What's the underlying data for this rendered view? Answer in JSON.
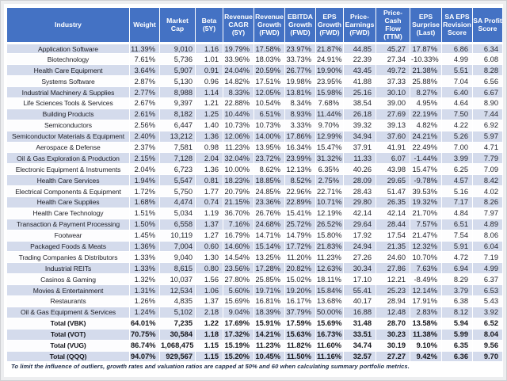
{
  "page": {
    "footnote": "To limit the influence of outliers, growth rates and valuation ratios are capped at 50% and 60 when calculating summary portfolio metrics."
  },
  "colors": {
    "header_bg": "#4472C4",
    "header_text": "#FFFFFF",
    "banded_row_bg": "#D4DBEC",
    "plain_row_bg": "#FDFDFE",
    "body_text": "#1E1F27",
    "footnote_text": "#1C2B47"
  },
  "chart_data": {
    "type": "table",
    "columns": [
      "Industry",
      "Weight",
      "Market Cap",
      "Beta (5Y)",
      "Revenue CAGR (5Y)",
      "Revenue Growth (FWD)",
      "EBITDA Growth (FWD)",
      "EPS Growth (FWD)",
      "Price-Earnings (FWD)",
      "Price-Cash Flow (TTM)",
      "EPS Surprise (Last)",
      "SA EPS Revision Score",
      "SA Profit Score"
    ],
    "rows": [
      [
        "Application Software",
        "11.39%",
        "9,010",
        "1.16",
        "19.79%",
        "17.58%",
        "23.97%",
        "21.87%",
        "44.85",
        "45.27",
        "17.87%",
        "6.86",
        "6.34"
      ],
      [
        "Biotechnology",
        "7.61%",
        "5,736",
        "1.01",
        "33.96%",
        "18.03%",
        "33.73%",
        "24.91%",
        "22.39",
        "27.34",
        "-10.33%",
        "4.99",
        "6.08"
      ],
      [
        "Health Care Equipment",
        "3.64%",
        "5,907",
        "0.91",
        "24.04%",
        "20.59%",
        "26.77%",
        "19.90%",
        "43.45",
        "49.72",
        "21.38%",
        "5.51",
        "8.28"
      ],
      [
        "Systems Software",
        "2.87%",
        "5,130",
        "0.96",
        "14.82%",
        "17.51%",
        "19.98%",
        "23.95%",
        "41.88",
        "37.33",
        "25.88%",
        "7.04",
        "6.56"
      ],
      [
        "Industrial Machinery & Supplies",
        "2.77%",
        "8,988",
        "1.14",
        "8.33%",
        "12.05%",
        "13.81%",
        "15.98%",
        "25.16",
        "30.10",
        "8.27%",
        "6.40",
        "6.67"
      ],
      [
        "Life Sciences Tools & Services",
        "2.67%",
        "9,397",
        "1.21",
        "22.88%",
        "10.54%",
        "8.34%",
        "7.68%",
        "38.54",
        "39.00",
        "4.95%",
        "4.64",
        "8.90"
      ],
      [
        "Building Products",
        "2.61%",
        "8,182",
        "1.25",
        "10.44%",
        "6.51%",
        "8.93%",
        "11.44%",
        "26.18",
        "27.69",
        "22.19%",
        "7.50",
        "7.44"
      ],
      [
        "Semiconductors",
        "2.56%",
        "6,447",
        "1.40",
        "10.73%",
        "10.73%",
        "3.33%",
        "9.70%",
        "39.32",
        "39.13",
        "4.82%",
        "4.22",
        "6.92"
      ],
      [
        "Semiconductor Materials & Equipment",
        "2.40%",
        "13,212",
        "1.36",
        "12.06%",
        "14.00%",
        "17.86%",
        "12.99%",
        "34.94",
        "37.60",
        "24.21%",
        "5.26",
        "5.97"
      ],
      [
        "Aerospace & Defense",
        "2.37%",
        "7,581",
        "0.98",
        "11.23%",
        "13.95%",
        "16.34%",
        "15.47%",
        "37.91",
        "41.91",
        "22.49%",
        "7.00",
        "4.71"
      ],
      [
        "Oil & Gas Exploration & Production",
        "2.15%",
        "7,128",
        "2.04",
        "32.04%",
        "23.72%",
        "23.99%",
        "31.32%",
        "11.33",
        "6.07",
        "-1.44%",
        "3.99",
        "7.79"
      ],
      [
        "Electronic Equipment & Instruments",
        "2.04%",
        "6,723",
        "1.36",
        "10.00%",
        "8.62%",
        "12.13%",
        "6.35%",
        "40.26",
        "43.98",
        "15.47%",
        "6.25",
        "7.09"
      ],
      [
        "Health Care Services",
        "1.94%",
        "5,547",
        "0.81",
        "18.23%",
        "18.85%",
        "8.52%",
        "2.75%",
        "28.09",
        "29.65",
        "-9.78%",
        "4.57",
        "8.42"
      ],
      [
        "Electrical Components & Equipment",
        "1.72%",
        "5,750",
        "1.77",
        "20.79%",
        "24.85%",
        "22.96%",
        "22.71%",
        "28.43",
        "51.47",
        "39.53%",
        "5.16",
        "4.02"
      ],
      [
        "Health Care Supplies",
        "1.68%",
        "4,474",
        "0.74",
        "21.15%",
        "23.36%",
        "22.89%",
        "10.71%",
        "29.80",
        "26.35",
        "19.32%",
        "7.17",
        "8.26"
      ],
      [
        "Health Care Technology",
        "1.51%",
        "5,034",
        "1.19",
        "36.70%",
        "26.76%",
        "15.41%",
        "12.19%",
        "42.14",
        "42.14",
        "21.70%",
        "4.84",
        "7.97"
      ],
      [
        "Transaction & Payment Processing",
        "1.50%",
        "6,558",
        "1.37",
        "7.16%",
        "24.68%",
        "25.72%",
        "26.52%",
        "29.64",
        "28.44",
        "7.57%",
        "6.51",
        "4.89"
      ],
      [
        "Footwear",
        "1.45%",
        "10,119",
        "1.27",
        "16.79%",
        "14.71%",
        "14.79%",
        "15.80%",
        "17.92",
        "17.54",
        "21.47%",
        "7.54",
        "8.06"
      ],
      [
        "Packaged Foods & Meats",
        "1.36%",
        "7,004",
        "0.60",
        "14.60%",
        "15.14%",
        "17.72%",
        "21.83%",
        "24.94",
        "21.35",
        "12.32%",
        "5.91",
        "6.04"
      ],
      [
        "Trading Companies & Distributors",
        "1.33%",
        "9,040",
        "1.30",
        "14.54%",
        "13.25%",
        "11.20%",
        "11.23%",
        "27.26",
        "24.60",
        "10.70%",
        "4.72",
        "7.19"
      ],
      [
        "Industrial REITs",
        "1.33%",
        "8,615",
        "0.80",
        "23.56%",
        "17.28%",
        "20.82%",
        "12.63%",
        "30.34",
        "27.86",
        "7.63%",
        "6.94",
        "4.99"
      ],
      [
        "Casinos & Gaming",
        "1.32%",
        "10,037",
        "1.56",
        "27.80%",
        "25.85%",
        "15.02%",
        "18.11%",
        "17.10",
        "12.21",
        "-8.49%",
        "8.29",
        "6.37"
      ],
      [
        "Movies & Entertainment",
        "1.31%",
        "12,534",
        "1.06",
        "5.60%",
        "19.71%",
        "19.20%",
        "15.84%",
        "55.41",
        "25.23",
        "12.14%",
        "3.79",
        "6.53"
      ],
      [
        "Restaurants",
        "1.26%",
        "4,835",
        "1.37",
        "15.69%",
        "16.81%",
        "16.17%",
        "13.68%",
        "40.17",
        "28.94",
        "17.91%",
        "6.38",
        "5.43"
      ],
      [
        "Oil & Gas Equipment & Services",
        "1.24%",
        "5,102",
        "2.18",
        "9.04%",
        "18.39%",
        "37.79%",
        "50.00%",
        "16.88",
        "12.48",
        "2.83%",
        "8.12",
        "3.92"
      ]
    ],
    "totals": [
      [
        "Total (VBK)",
        "64.01%",
        "7,235",
        "1.22",
        "17.69%",
        "15.91%",
        "17.59%",
        "15.69%",
        "31.48",
        "28.70",
        "13.58%",
        "5.94",
        "6.52"
      ],
      [
        "Total (VOT)",
        "70.75%",
        "30,584",
        "1.18",
        "17.32%",
        "14.21%",
        "15.63%",
        "16.73%",
        "33.51",
        "30.23",
        "11.38%",
        "5.99",
        "8.04"
      ],
      [
        "Total (VUG)",
        "86.74%",
        "1,068,475",
        "1.15",
        "15.19%",
        "11.23%",
        "11.82%",
        "11.60%",
        "34.74",
        "30.19",
        "9.10%",
        "6.35",
        "9.56"
      ],
      [
        "Total (QQQ)",
        "94.07%",
        "929,567",
        "1.15",
        "15.20%",
        "10.45%",
        "11.50%",
        "11.16%",
        "32.57",
        "27.27",
        "9.42%",
        "6.36",
        "9.70"
      ]
    ]
  }
}
